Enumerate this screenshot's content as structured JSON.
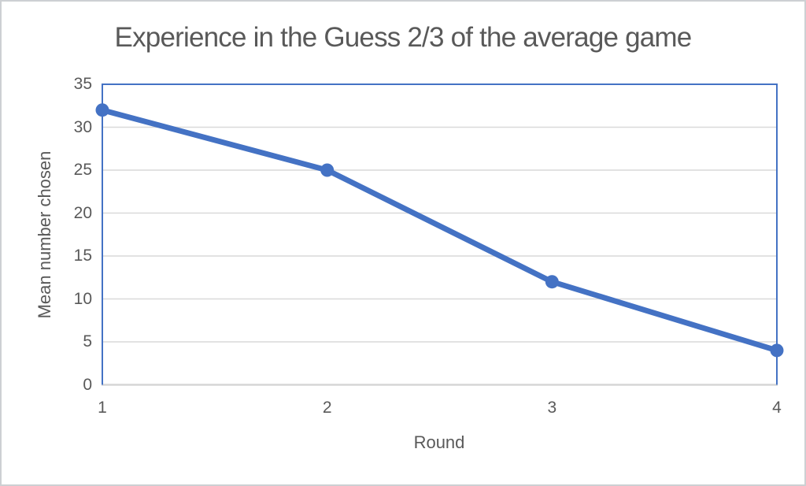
{
  "chart_data": {
    "type": "line",
    "title": "Experience in the Guess 2/3 of the average game",
    "xlabel": "Round",
    "ylabel": "Mean number chosen",
    "categories": [
      "1",
      "2",
      "3",
      "4"
    ],
    "series": [
      {
        "name": "Mean number chosen",
        "values": [
          32,
          25,
          12,
          4
        ]
      }
    ],
    "ylim": [
      0,
      35
    ],
    "yticks": [
      0,
      5,
      10,
      15,
      20,
      25,
      30,
      35
    ],
    "grid": "horizontal",
    "legend_position": "none",
    "colors": {
      "line": "#4472C4",
      "marker": "#4472C4",
      "gridline": "#D9D9D9",
      "plot_border": "#4472C4",
      "x_axis_line": "#D6D6D6",
      "text": "#595959"
    }
  }
}
